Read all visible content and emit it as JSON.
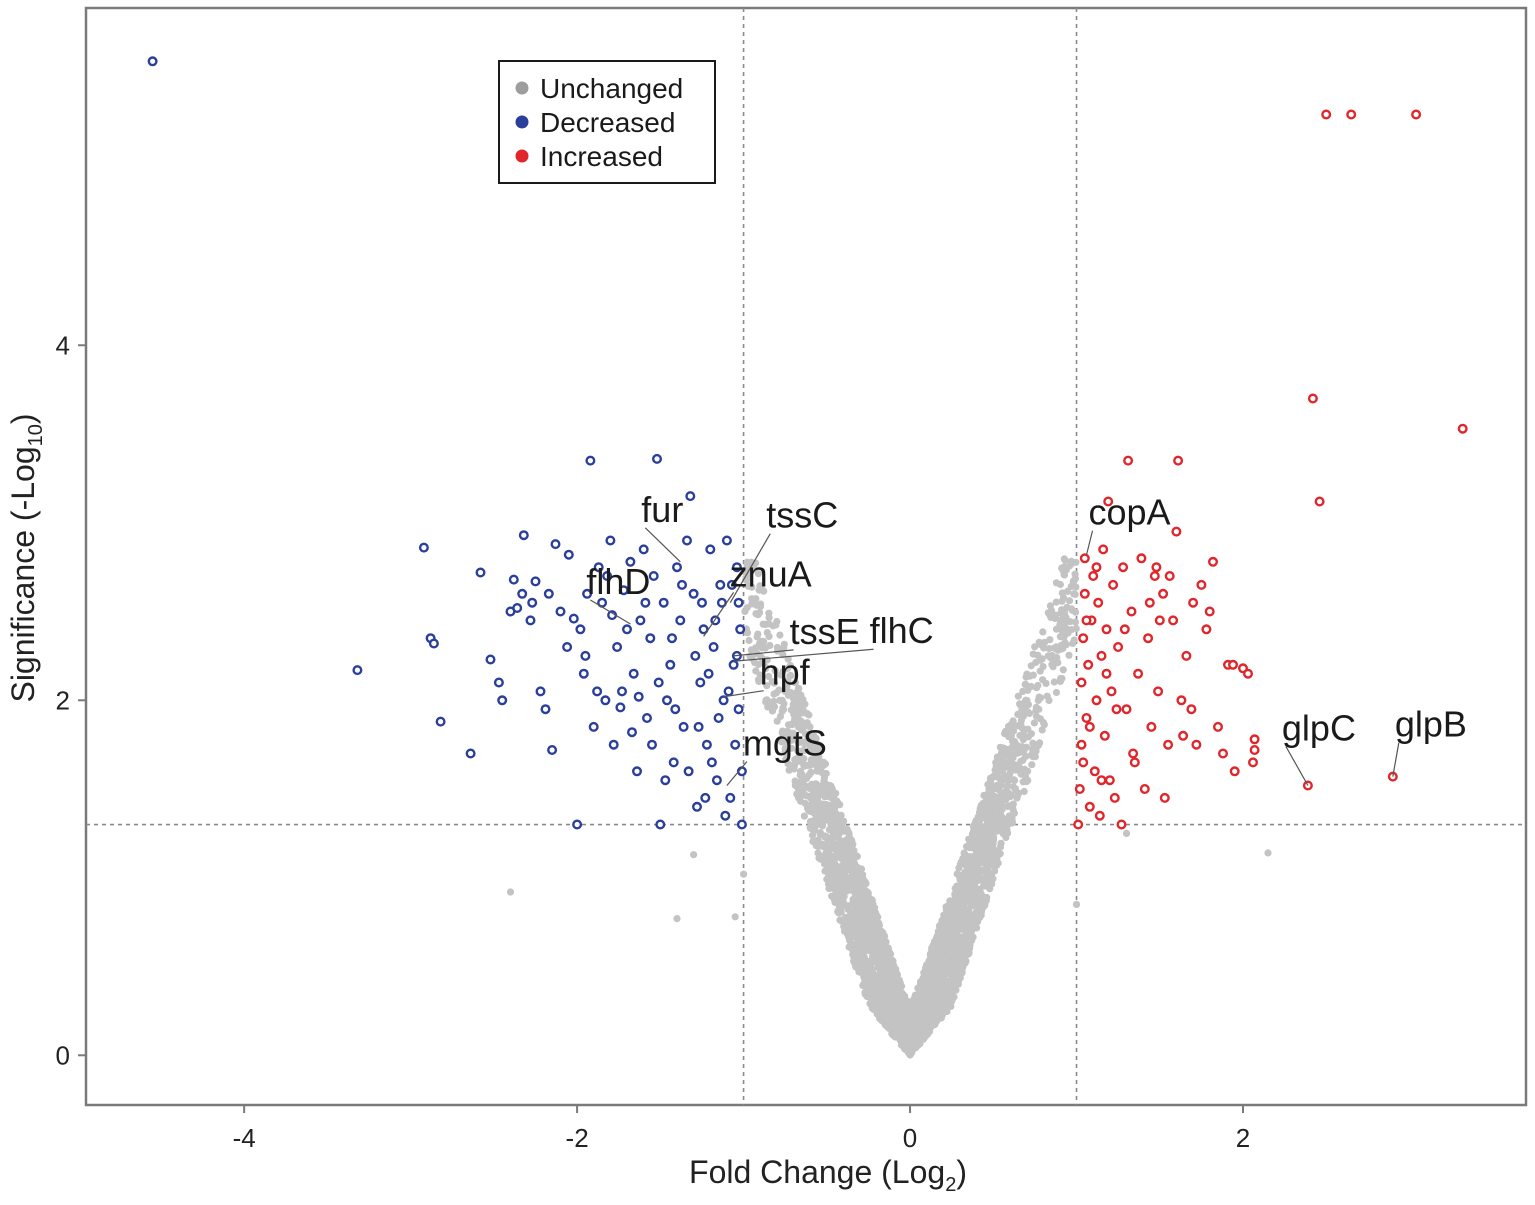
{
  "chart_data": {
    "type": "scatter",
    "title": "",
    "xlabel": {
      "main": "Fold Change (Log",
      "sub": "2",
      "close": ")"
    },
    "ylabel": {
      "main": "Significance (-Log",
      "sub": "10",
      "close": ")"
    },
    "xlim": [
      -4.95,
      3.7
    ],
    "ylim": [
      -0.28,
      5.9
    ],
    "x_ticks": [
      -4,
      -2,
      0,
      2
    ],
    "x_tick_labels": [
      "-4",
      "-2",
      "0",
      "2"
    ],
    "y_ticks": [
      0,
      2,
      4
    ],
    "y_tick_labels": [
      "0",
      "2",
      "4"
    ],
    "thresholds": {
      "fold_change": [
        -1,
        1
      ],
      "significance": 1.3
    },
    "colors": {
      "unchanged": "#c3c3c3",
      "decreased": "#2a3f9a",
      "increased": "#e0262b",
      "line": "#8a8a8a",
      "frame": "#7a7a7a"
    },
    "legend": {
      "position": "top-left",
      "entries": [
        {
          "label": "Unchanged",
          "color": "#9d9d9d"
        },
        {
          "label": "Decreased",
          "color": "#2a3f9a"
        },
        {
          "label": "Increased",
          "color": "#e0262b"
        }
      ]
    },
    "unchanged_note": "approximately 4000 genes with |log2 FC| < 1 or significance < 1.3, forming a V-shape",
    "decreased": [
      [
        -4.55,
        5.6
      ],
      [
        -3.32,
        2.17
      ],
      [
        -2.92,
        2.86
      ],
      [
        -2.88,
        2.35
      ],
      [
        -2.86,
        2.32
      ],
      [
        -2.82,
        1.88
      ],
      [
        -2.64,
        1.7
      ],
      [
        -2.58,
        2.72
      ],
      [
        -2.52,
        2.23
      ],
      [
        -2.47,
        2.1
      ],
      [
        -2.45,
        2.0
      ],
      [
        -2.4,
        2.5
      ],
      [
        -2.38,
        2.68
      ],
      [
        -2.36,
        2.52
      ],
      [
        -2.33,
        2.6
      ],
      [
        -2.32,
        2.93
      ],
      [
        -2.28,
        2.45
      ],
      [
        -2.25,
        2.67
      ],
      [
        -2.22,
        2.05
      ],
      [
        -2.19,
        1.95
      ],
      [
        -2.17,
        2.6
      ],
      [
        -2.15,
        1.72
      ],
      [
        -2.13,
        2.88
      ],
      [
        -2.1,
        2.5
      ],
      [
        -2.05,
        2.82
      ],
      [
        -2.02,
        2.46
      ],
      [
        -2.0,
        1.3
      ],
      [
        -1.98,
        2.4
      ],
      [
        -1.96,
        2.15
      ],
      [
        -1.94,
        2.6
      ],
      [
        -1.92,
        3.35
      ],
      [
        -1.9,
        1.85
      ],
      [
        -1.87,
        2.75
      ],
      [
        -1.85,
        2.55
      ],
      [
        -1.83,
        2.0
      ],
      [
        -1.8,
        2.9
      ],
      [
        -1.78,
        1.75
      ],
      [
        -1.76,
        2.3
      ],
      [
        -1.74,
        1.96
      ],
      [
        -1.72,
        2.62
      ],
      [
        -1.7,
        2.4
      ],
      [
        -1.68,
        2.78
      ],
      [
        -1.66,
        2.15
      ],
      [
        -1.64,
        1.6
      ],
      [
        -1.62,
        2.45
      ],
      [
        -1.6,
        2.85
      ],
      [
        -1.58,
        1.9
      ],
      [
        -1.56,
        2.35
      ],
      [
        -1.54,
        2.7
      ],
      [
        -1.52,
        3.36
      ],
      [
        -1.5,
        1.3
      ],
      [
        -1.48,
        2.55
      ],
      [
        -1.46,
        2.0
      ],
      [
        -1.44,
        2.2
      ],
      [
        -1.42,
        1.65
      ],
      [
        -1.4,
        2.75
      ],
      [
        -1.38,
        2.45
      ],
      [
        -1.36,
        1.85
      ],
      [
        -1.34,
        2.9
      ],
      [
        -1.32,
        3.15
      ],
      [
        -1.3,
        2.6
      ],
      [
        -1.28,
        1.4
      ],
      [
        -1.26,
        2.1
      ],
      [
        -1.24,
        2.4
      ],
      [
        -1.22,
        1.75
      ],
      [
        -1.2,
        2.85
      ],
      [
        -1.18,
        2.3
      ],
      [
        -1.16,
        1.55
      ],
      [
        -1.14,
        2.65
      ],
      [
        -1.12,
        2.0
      ],
      [
        -1.1,
        2.9
      ],
      [
        -1.08,
        1.45
      ],
      [
        -1.06,
        2.2
      ],
      [
        -1.04,
        2.75
      ],
      [
        -1.03,
        1.95
      ],
      [
        -1.02,
        2.4
      ],
      [
        -1.01,
        1.6
      ],
      [
        -1.01,
        1.3
      ],
      [
        -2.27,
        2.55
      ],
      [
        -2.06,
        2.3
      ],
      [
        -1.95,
        2.25
      ],
      [
        -1.88,
        2.05
      ],
      [
        -1.82,
        2.7
      ],
      [
        -1.79,
        2.48
      ],
      [
        -1.73,
        2.05
      ],
      [
        -1.67,
        1.82
      ],
      [
        -1.63,
        2.02
      ],
      [
        -1.59,
        2.55
      ],
      [
        -1.55,
        1.75
      ],
      [
        -1.51,
        2.1
      ],
      [
        -1.47,
        1.55
      ],
      [
        -1.43,
        2.35
      ],
      [
        -1.41,
        1.95
      ],
      [
        -1.37,
        2.65
      ],
      [
        -1.33,
        1.6
      ],
      [
        -1.29,
        2.25
      ],
      [
        -1.27,
        1.85
      ],
      [
        -1.25,
        2.55
      ],
      [
        -1.23,
        1.45
      ],
      [
        -1.21,
        2.15
      ],
      [
        -1.19,
        1.65
      ],
      [
        -1.17,
        2.45
      ],
      [
        -1.15,
        1.9
      ],
      [
        -1.13,
        2.55
      ],
      [
        -1.11,
        1.35
      ],
      [
        -1.09,
        2.05
      ],
      [
        -1.07,
        2.65
      ],
      [
        -1.05,
        1.75
      ],
      [
        -1.04,
        2.25
      ],
      [
        -1.03,
        2.55
      ]
    ],
    "increased": [
      [
        1.01,
        1.3
      ],
      [
        1.02,
        1.5
      ],
      [
        1.03,
        1.75
      ],
      [
        1.03,
        2.1
      ],
      [
        1.04,
        2.35
      ],
      [
        1.05,
        2.6
      ],
      [
        1.05,
        2.8
      ],
      [
        1.06,
        1.9
      ],
      [
        1.07,
        2.2
      ],
      [
        1.08,
        1.4
      ],
      [
        1.09,
        2.45
      ],
      [
        1.1,
        2.7
      ],
      [
        1.11,
        1.6
      ],
      [
        1.12,
        2.0
      ],
      [
        1.13,
        2.55
      ],
      [
        1.14,
        1.35
      ],
      [
        1.15,
        2.25
      ],
      [
        1.16,
        2.85
      ],
      [
        1.17,
        1.8
      ],
      [
        1.18,
        2.4
      ],
      [
        1.19,
        3.12
      ],
      [
        1.2,
        1.55
      ],
      [
        1.21,
        2.05
      ],
      [
        1.22,
        2.65
      ],
      [
        1.23,
        1.45
      ],
      [
        1.25,
        2.3
      ],
      [
        1.27,
        1.3
      ],
      [
        1.28,
        2.75
      ],
      [
        1.3,
        1.95
      ],
      [
        1.31,
        3.35
      ],
      [
        1.33,
        2.5
      ],
      [
        1.35,
        1.65
      ],
      [
        1.37,
        2.15
      ],
      [
        1.39,
        2.8
      ],
      [
        1.41,
        1.5
      ],
      [
        1.43,
        2.35
      ],
      [
        1.45,
        1.85
      ],
      [
        1.47,
        2.7
      ],
      [
        1.49,
        2.05
      ],
      [
        1.52,
        2.6
      ],
      [
        1.55,
        1.75
      ],
      [
        1.58,
        2.45
      ],
      [
        1.6,
        2.95
      ],
      [
        1.61,
        3.35
      ],
      [
        1.63,
        2.0
      ],
      [
        1.66,
        2.25
      ],
      [
        1.69,
        1.95
      ],
      [
        1.72,
        1.75
      ],
      [
        1.75,
        2.65
      ],
      [
        1.78,
        2.4
      ],
      [
        1.82,
        2.78
      ],
      [
        1.85,
        1.85
      ],
      [
        1.88,
        1.7
      ],
      [
        1.91,
        2.2
      ],
      [
        1.95,
        1.6
      ],
      [
        2.0,
        2.18
      ],
      [
        2.06,
        1.65
      ],
      [
        2.07,
        1.78
      ],
      [
        2.39,
        1.52
      ],
      [
        2.42,
        3.7
      ],
      [
        2.46,
        3.12
      ],
      [
        2.5,
        5.3
      ],
      [
        2.65,
        5.3
      ],
      [
        2.9,
        1.57
      ],
      [
        3.04,
        5.3
      ],
      [
        3.32,
        3.53
      ],
      [
        1.04,
        1.65
      ],
      [
        1.06,
        2.45
      ],
      [
        1.08,
        1.85
      ],
      [
        1.12,
        2.75
      ],
      [
        1.15,
        1.55
      ],
      [
        1.18,
        2.15
      ],
      [
        1.24,
        1.95
      ],
      [
        1.29,
        2.4
      ],
      [
        1.34,
        1.7
      ],
      [
        1.44,
        2.55
      ],
      [
        1.48,
        2.75
      ],
      [
        1.5,
        2.45
      ],
      [
        1.53,
        1.45
      ],
      [
        1.56,
        2.7
      ],
      [
        1.64,
        1.8
      ],
      [
        1.7,
        2.55
      ],
      [
        1.8,
        2.5
      ],
      [
        1.94,
        2.2
      ],
      [
        2.03,
        2.15
      ],
      [
        2.07,
        1.72
      ]
    ],
    "labeled_genes": [
      {
        "gene": "tssC",
        "x": -1.08,
        "y": 2.55
      },
      {
        "gene": "fur",
        "x": -1.38,
        "y": 2.78
      },
      {
        "gene": "znuA",
        "x": -1.24,
        "y": 2.36
      },
      {
        "gene": "flhD",
        "x": -1.68,
        "y": 2.43
      },
      {
        "gene": "tssE",
        "x": -1.06,
        "y": 2.25
      },
      {
        "gene": "flhC",
        "x": -1.06,
        "y": 2.22
      },
      {
        "gene": "hpf",
        "x": -1.12,
        "y": 2.02
      },
      {
        "gene": "mgtS",
        "x": -1.1,
        "y": 1.52
      },
      {
        "gene": "copA",
        "x": 1.06,
        "y": 2.82
      },
      {
        "gene": "glpC",
        "x": 2.39,
        "y": 1.52
      },
      {
        "gene": "glpB",
        "x": 2.9,
        "y": 1.57
      }
    ]
  }
}
